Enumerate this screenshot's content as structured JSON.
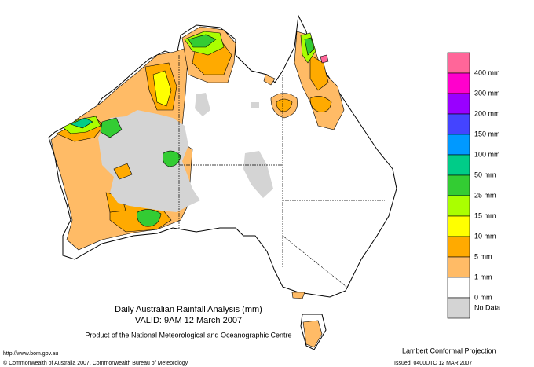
{
  "title": "Daily Australian Rainfall Analysis (mm)",
  "valid": "VALID: 9AM 12 March 2007",
  "product": "Product of the National Meteorological and Oceanographic Centre",
  "url": "http://www.bom.gov.au",
  "copyright": "© Commonwealth of Australia 2007, Commonwealth Bureau of Meteorology",
  "projection": "Lambert Conformal Projection",
  "issued": "Issued: 0400UTC 12 MAR 2007",
  "legend": {
    "colors": [
      "#ff6699",
      "#ff00cc",
      "#9900ff",
      "#4444ff",
      "#0099ff",
      "#00cc88",
      "#33cc33",
      "#aaff00",
      "#ffff00",
      "#ffaa00",
      "#ffbb66",
      "#ffffff",
      "#d4d4d4"
    ],
    "labels": [
      "400 mm",
      "300 mm",
      "200 mm",
      "150 mm",
      "100 mm",
      "50 mm",
      "25 mm",
      "15 mm",
      "10 mm",
      "5 mm",
      "1 mm",
      "0 mm",
      "No Data"
    ]
  }
}
